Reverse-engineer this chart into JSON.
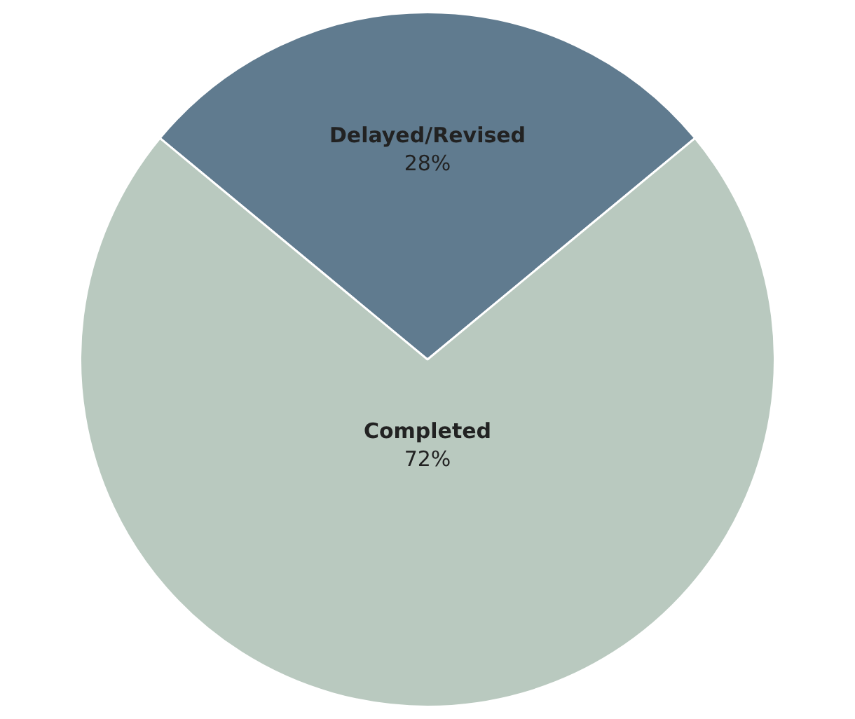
{
  "chart_data": {
    "type": "pie",
    "categories": [
      "Delayed/Revised",
      "Completed"
    ],
    "values": [
      28,
      72
    ],
    "colors": [
      "#607b8f",
      "#b9c9bf"
    ],
    "value_labels": [
      "28%",
      "72%"
    ],
    "legend": false
  }
}
